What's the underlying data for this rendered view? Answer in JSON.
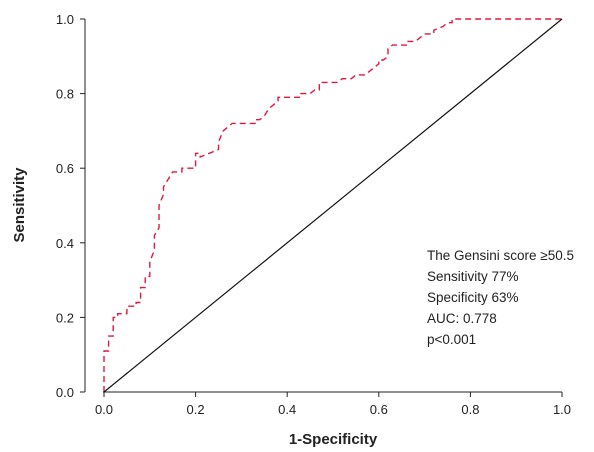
{
  "chart_data": {
    "type": "line",
    "xlabel": "1-Specificity",
    "ylabel": "Sensitivity",
    "xlim": [
      0,
      1
    ],
    "ylim": [
      0,
      1
    ],
    "x_ticks": [
      "0.0",
      "0.2",
      "0.4",
      "0.6",
      "0.8",
      "1.0"
    ],
    "y_ticks": [
      "0.0",
      "0.2",
      "0.4",
      "0.6",
      "0.8",
      "1.0"
    ],
    "grid": false,
    "annotation": [
      "The Gensini score ≥50.5",
      "Sensitivity 77%",
      "Specificity 63%",
      "AUC: 0.778",
      "p<0.001"
    ],
    "series": [
      {
        "color": "#e0193d",
        "style": "dashed",
        "points": [
          [
            0.0,
            0.0
          ],
          [
            0.0,
            0.11
          ],
          [
            0.01,
            0.11
          ],
          [
            0.01,
            0.15
          ],
          [
            0.02,
            0.15
          ],
          [
            0.02,
            0.2
          ],
          [
            0.03,
            0.2
          ],
          [
            0.03,
            0.21
          ],
          [
            0.05,
            0.21
          ],
          [
            0.05,
            0.23
          ],
          [
            0.07,
            0.23
          ],
          [
            0.07,
            0.24
          ],
          [
            0.08,
            0.24
          ],
          [
            0.08,
            0.28
          ],
          [
            0.09,
            0.28
          ],
          [
            0.09,
            0.31
          ],
          [
            0.1,
            0.31
          ],
          [
            0.1,
            0.35
          ],
          [
            0.11,
            0.38
          ],
          [
            0.11,
            0.42
          ],
          [
            0.12,
            0.44
          ],
          [
            0.12,
            0.5
          ],
          [
            0.13,
            0.53
          ],
          [
            0.13,
            0.55
          ],
          [
            0.14,
            0.57
          ],
          [
            0.15,
            0.59
          ],
          [
            0.17,
            0.59
          ],
          [
            0.17,
            0.6
          ],
          [
            0.2,
            0.6
          ],
          [
            0.2,
            0.64
          ],
          [
            0.21,
            0.64
          ],
          [
            0.21,
            0.63
          ],
          [
            0.23,
            0.64
          ],
          [
            0.25,
            0.65
          ],
          [
            0.25,
            0.67
          ],
          [
            0.26,
            0.7
          ],
          [
            0.27,
            0.71
          ],
          [
            0.28,
            0.72
          ],
          [
            0.33,
            0.72
          ],
          [
            0.33,
            0.73
          ],
          [
            0.34,
            0.73
          ],
          [
            0.35,
            0.74
          ],
          [
            0.36,
            0.76
          ],
          [
            0.37,
            0.77
          ],
          [
            0.38,
            0.78
          ],
          [
            0.38,
            0.79
          ],
          [
            0.43,
            0.79
          ],
          [
            0.43,
            0.8
          ],
          [
            0.45,
            0.8
          ],
          [
            0.46,
            0.81
          ],
          [
            0.47,
            0.81
          ],
          [
            0.47,
            0.83
          ],
          [
            0.51,
            0.83
          ],
          [
            0.52,
            0.84
          ],
          [
            0.54,
            0.84
          ],
          [
            0.55,
            0.85
          ],
          [
            0.57,
            0.85
          ],
          [
            0.58,
            0.86
          ],
          [
            0.59,
            0.87
          ],
          [
            0.6,
            0.88
          ],
          [
            0.6,
            0.89
          ],
          [
            0.61,
            0.89
          ],
          [
            0.62,
            0.9
          ],
          [
            0.62,
            0.92
          ],
          [
            0.63,
            0.93
          ],
          [
            0.66,
            0.93
          ],
          [
            0.66,
            0.94
          ],
          [
            0.68,
            0.94
          ],
          [
            0.69,
            0.95
          ],
          [
            0.7,
            0.96
          ],
          [
            0.72,
            0.96
          ],
          [
            0.72,
            0.97
          ],
          [
            0.74,
            0.98
          ],
          [
            0.75,
            0.99
          ],
          [
            0.76,
            0.99
          ],
          [
            0.76,
            1.0
          ],
          [
            0.8,
            1.0
          ],
          [
            1.0,
            1.0
          ]
        ]
      },
      {
        "color": "#111111",
        "style": "solid",
        "points": [
          [
            0,
            0
          ],
          [
            1,
            1
          ]
        ]
      }
    ]
  }
}
